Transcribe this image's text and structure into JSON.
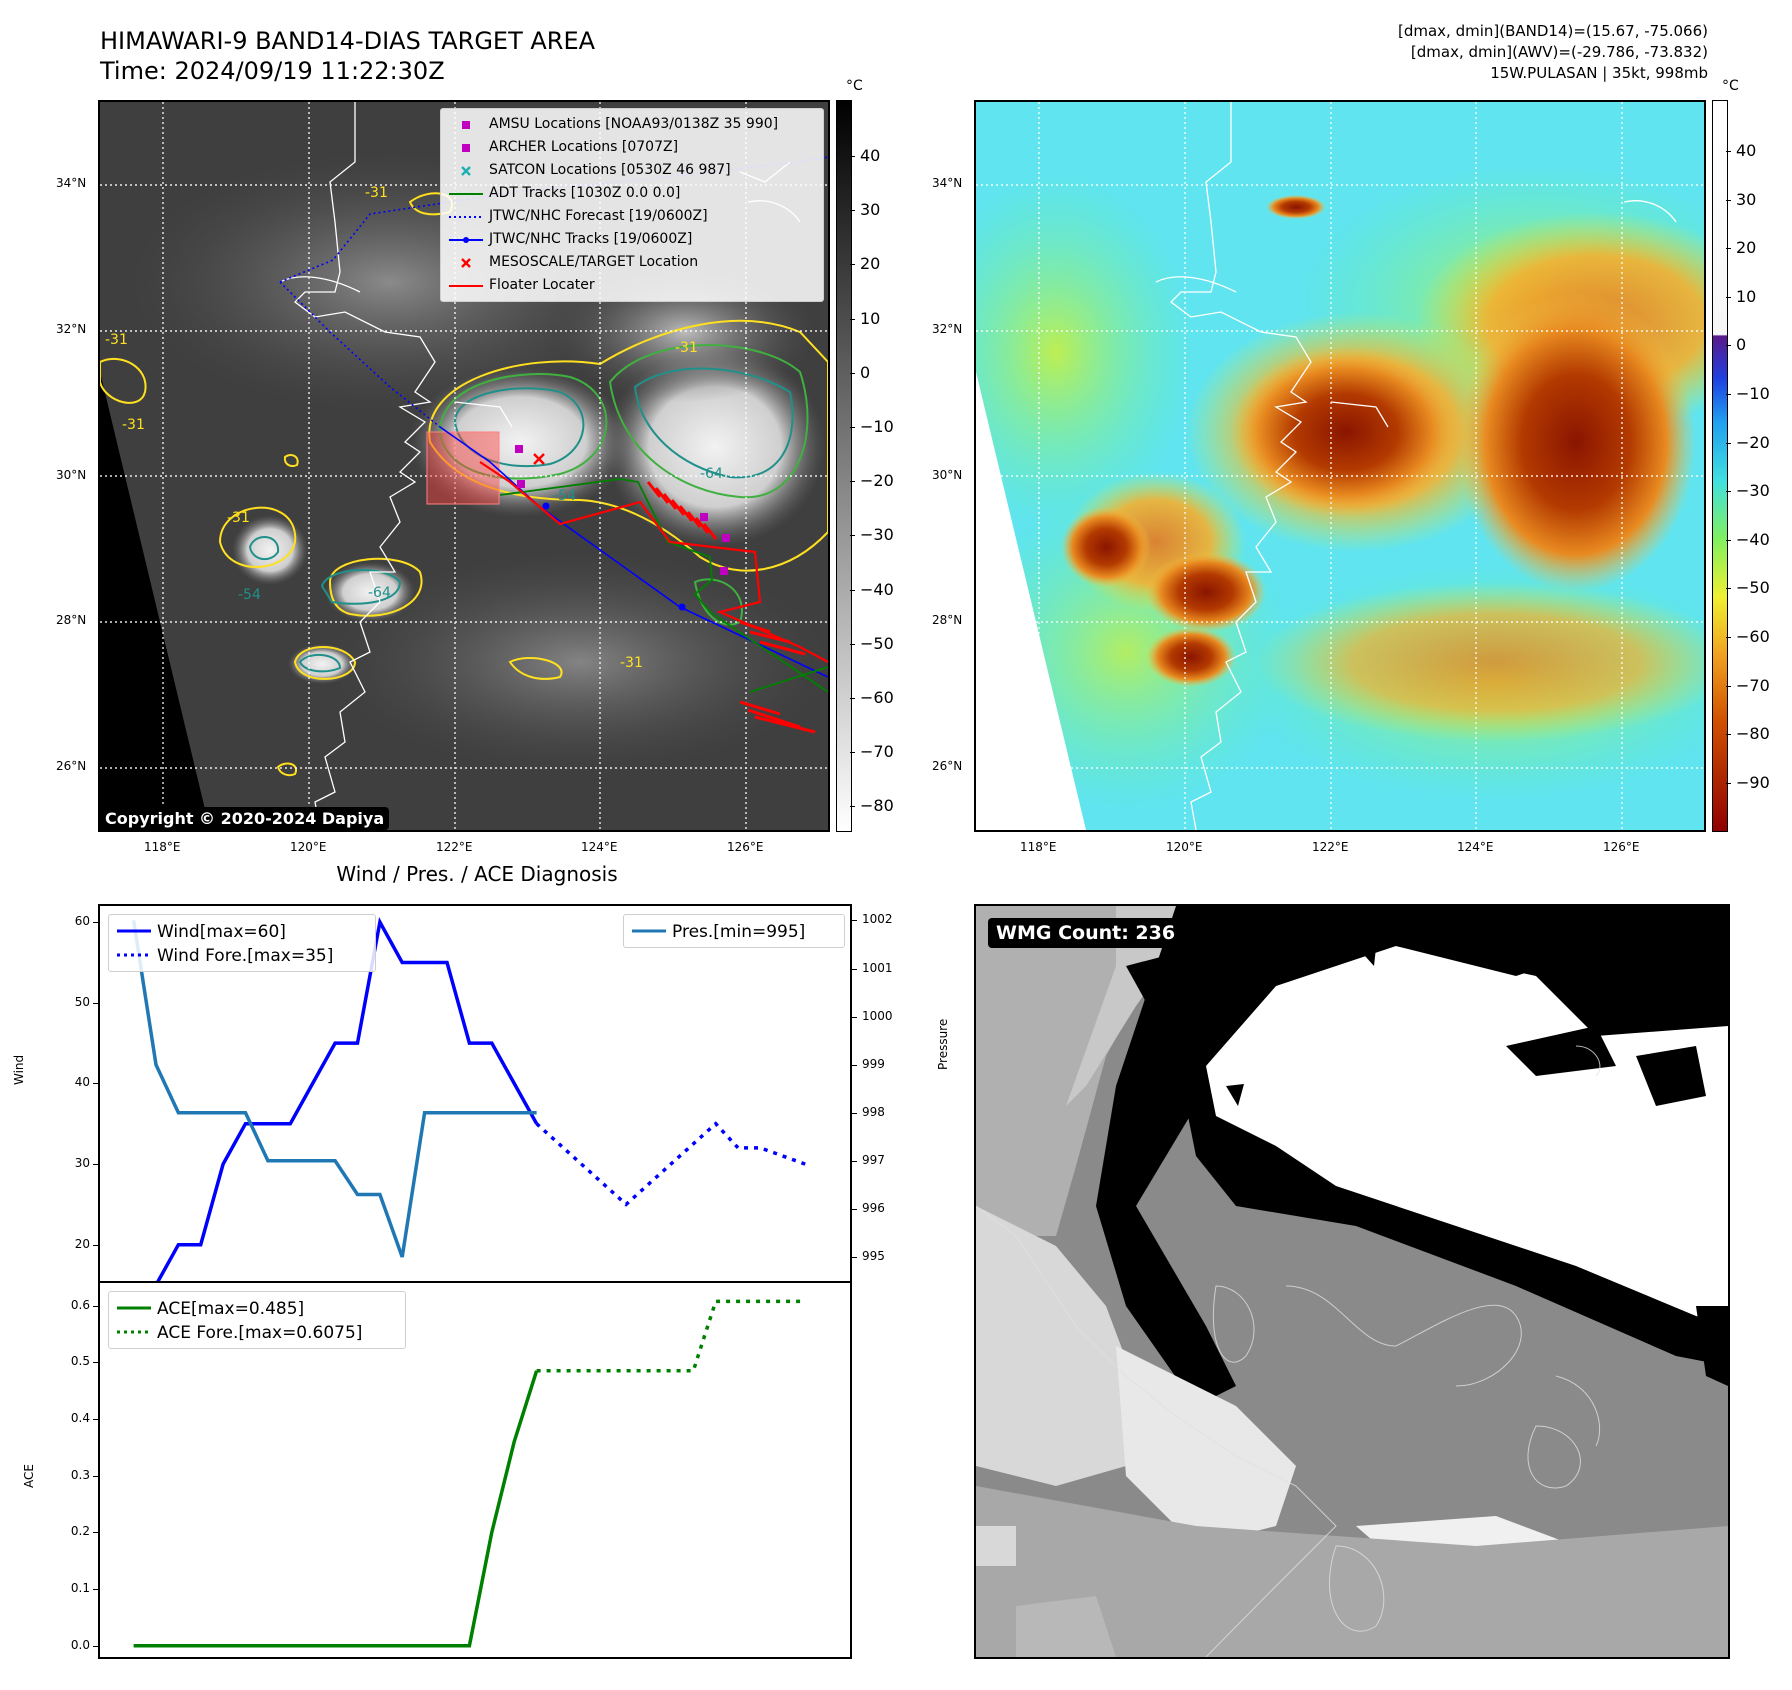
{
  "header": {
    "title_line1": "HIMAWARI-9 BAND14-DIAS TARGET AREA",
    "title_line2": "Time: 2024/09/19 11:22:30Z",
    "info_line1": "[dmax, dmin](BAND14)=(15.67, -75.066)",
    "info_line2": "[dmax, dmin](AWV)=(-29.786, -73.832)",
    "info_line3": "15W.PULASAN | 35kt, 998mb"
  },
  "ir_panel": {
    "copyright": "Copyright © 2020-2024 Dapiya",
    "lat_ticks": [
      "34°N",
      "32°N",
      "30°N",
      "28°N",
      "26°N"
    ],
    "lon_ticks": [
      "118°E",
      "120°E",
      "122°E",
      "124°E",
      "126°E"
    ],
    "colorbar_unit": "°C",
    "colorbar_ticks": [
      "40",
      "30",
      "20",
      "10",
      "0",
      "−10",
      "−20",
      "−30",
      "−40",
      "−50",
      "−60",
      "−70",
      "−80"
    ],
    "contour_labels": [
      "-31",
      "-31",
      "-31",
      "-31",
      "-31",
      "-54",
      "-64",
      "-54",
      "-64",
      "-31"
    ],
    "legend": [
      {
        "label": "AMSU Locations [NOAA93/0138Z 35 990]",
        "symbol": "square",
        "color": "#c000c0"
      },
      {
        "label": "ARCHER Locations [0707Z]",
        "symbol": "square",
        "color": "#c000c0"
      },
      {
        "label": "SATCON Locations [0530Z 46 987]",
        "symbol": "x",
        "color": "#20b0b0"
      },
      {
        "label": "ADT Tracks [1030Z 0.0 0.0]",
        "symbol": "line",
        "color": "#008000"
      },
      {
        "label": "JTWC/NHC Forecast [19/0600Z]",
        "symbol": "dotted",
        "color": "#0000ff"
      },
      {
        "label": "JTWC/NHC Tracks [19/0600Z]",
        "symbol": "line-dot",
        "color": "#0000ff"
      },
      {
        "label": "MESOSCALE/TARGET Location",
        "symbol": "x",
        "color": "#ff0000"
      },
      {
        "label": "Floater Locater",
        "symbol": "line",
        "color": "#ff0000"
      }
    ]
  },
  "color_panel": {
    "lat_ticks": [
      "34°N",
      "32°N",
      "30°N",
      "28°N",
      "26°N"
    ],
    "lon_ticks": [
      "118°E",
      "120°E",
      "122°E",
      "124°E",
      "126°E"
    ],
    "colorbar_unit": "°C",
    "colorbar_ticks": [
      "40",
      "30",
      "20",
      "10",
      "0",
      "−10",
      "−20",
      "−30",
      "−40",
      "−50",
      "−60",
      "−70",
      "−80",
      "−90"
    ]
  },
  "wmg_panel": {
    "count_label": "WMG Count: 236"
  },
  "chart_data": [
    {
      "type": "line",
      "title": "Wind / Pres. / ACE Diagnosis",
      "ylabel": "Wind",
      "ylabel_right": "Pressure",
      "ylim": [
        15.5,
        62
      ],
      "ylim_right": [
        994.5,
        1002.3
      ],
      "yticks": [
        20,
        30,
        40,
        50,
        60
      ],
      "yticks_right": [
        995,
        996,
        997,
        998,
        999,
        1000,
        1001,
        1002
      ],
      "legend_left": [
        "Wind[max=60]",
        "Wind Fore.[max=35]"
      ],
      "legend_right": [
        "Pres.[min=995]"
      ],
      "series": [
        {
          "name": "Wind[max=60]",
          "color": "#0000ff",
          "style": "solid",
          "x": [
            0,
            1,
            2,
            3,
            4,
            5,
            6,
            7,
            8,
            9,
            10,
            11,
            12,
            13,
            14,
            15,
            16,
            17,
            18
          ],
          "y": [
            15,
            15,
            20,
            20,
            30,
            35,
            35,
            35,
            40,
            45,
            45,
            60,
            55,
            55,
            55,
            45,
            45,
            40,
            35
          ]
        },
        {
          "name": "Wind Fore.[max=35]",
          "color": "#0000ff",
          "style": "dotted",
          "x": [
            18,
            22,
            26,
            27,
            28,
            30
          ],
          "y": [
            35,
            25,
            35,
            32,
            32,
            30
          ]
        },
        {
          "name": "Pres.[min=995]",
          "color": "#1f77b4",
          "style": "solid",
          "axis": "right",
          "x": [
            0,
            1,
            2,
            3,
            4,
            5,
            6,
            7,
            8,
            9,
            10,
            11,
            12,
            13,
            14,
            15,
            16,
            17,
            18
          ],
          "y": [
            1002,
            999,
            998,
            998,
            998,
            998,
            997,
            997,
            997,
            997,
            996.3,
            996.3,
            995,
            998,
            998,
            998,
            998,
            998,
            998
          ]
        }
      ]
    },
    {
      "type": "line",
      "ylabel": "ACE",
      "ylim": [
        -0.02,
        0.64
      ],
      "yticks": [
        0.0,
        0.1,
        0.2,
        0.3,
        0.4,
        0.5,
        0.6
      ],
      "ytick_labels": [
        "0.0",
        "0.1",
        "0.2",
        "0.3",
        "0.4",
        "0.5",
        "0.6"
      ],
      "legend": [
        "ACE[max=0.485]",
        "ACE Fore.[max=0.6075]"
      ],
      "series": [
        {
          "name": "ACE[max=0.485]",
          "color": "#008000",
          "style": "solid",
          "x": [
            0,
            15,
            16,
            17,
            18
          ],
          "y": [
            0,
            0,
            0.2,
            0.36,
            0.485
          ]
        },
        {
          "name": "ACE Fore.[max=0.6075]",
          "color": "#008000",
          "style": "dotted",
          "x": [
            18,
            25,
            26,
            27,
            28,
            30
          ],
          "y": [
            0.485,
            0.485,
            0.6075,
            0.6075,
            0.6075,
            0.6075
          ]
        }
      ]
    }
  ]
}
